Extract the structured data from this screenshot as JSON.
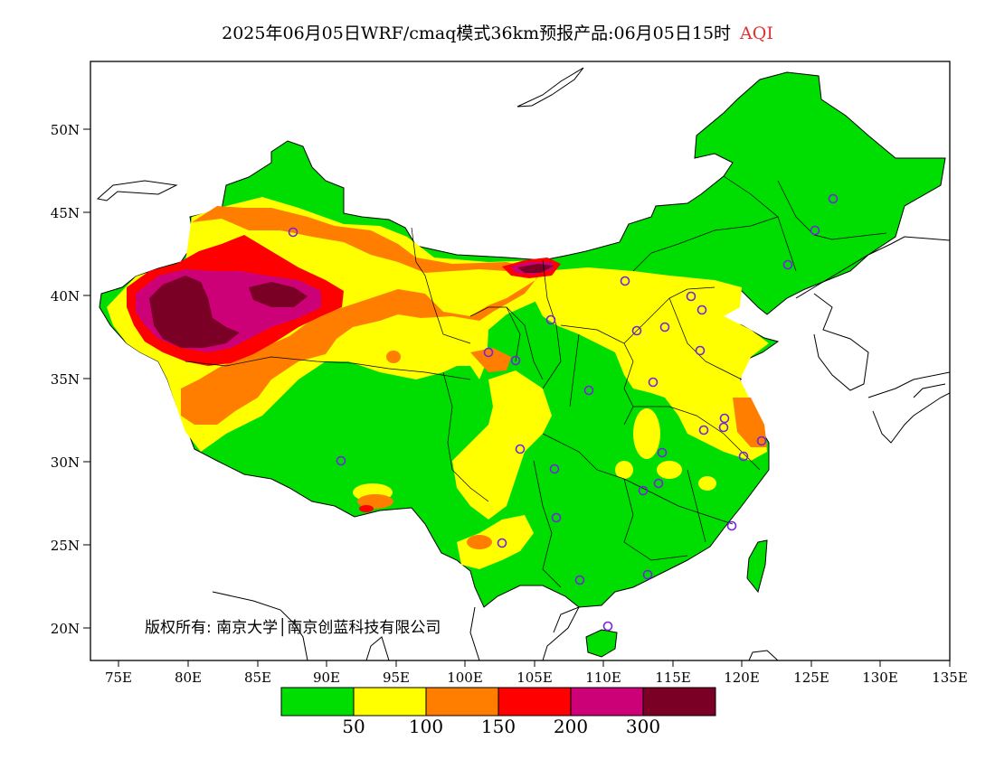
{
  "title": {
    "text": "2025年06月05日WRF/cmaq模式36km预报产品:06月05日15时",
    "highlight": "AQI",
    "highlight_color": "#e03030"
  },
  "axes": {
    "y_ticks": [
      "50N",
      "45N",
      "40N",
      "35N",
      "30N",
      "25N",
      "20N"
    ],
    "x_ticks": [
      "75E",
      "80E",
      "85E",
      "90E",
      "95E",
      "100E",
      "105E",
      "110E",
      "115E",
      "120E",
      "125E",
      "130E",
      "135E"
    ]
  },
  "copyright": "版权所有: 南京大学│南京创蓝科技有限公司",
  "legend": {
    "colors": [
      "#00dd00",
      "#ffff00",
      "#ff7e00",
      "#ff0000",
      "#cc0077",
      "#7a0026"
    ],
    "labels": [
      "50",
      "100",
      "150",
      "200",
      "300"
    ]
  },
  "colors": {
    "sea": "#ffffff",
    "border": "#000000",
    "station": "#7722dd"
  }
}
